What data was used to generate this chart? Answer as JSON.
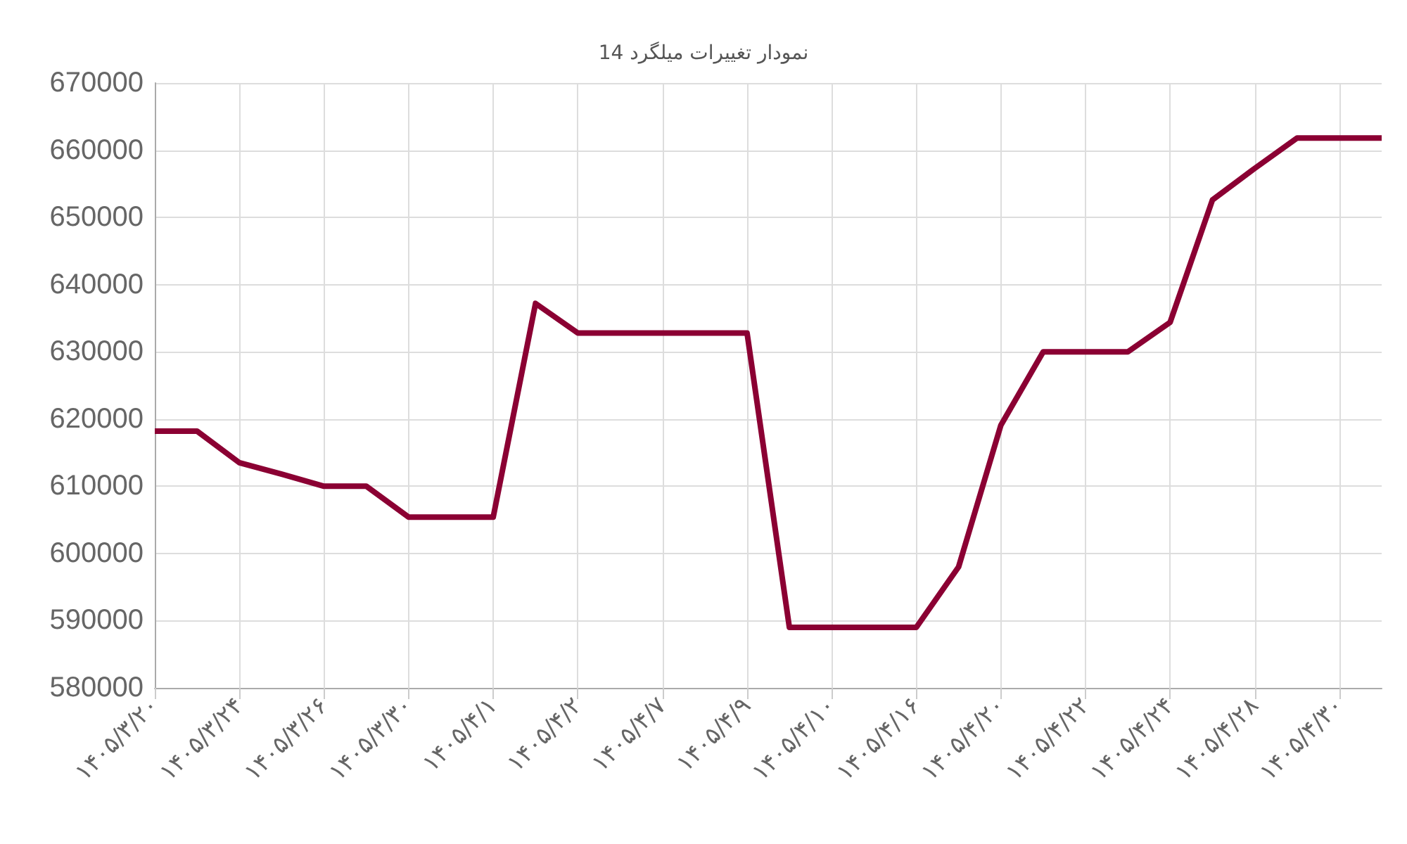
{
  "chart_data": {
    "type": "line",
    "title": "نمودار تغییرات میلگرد 14",
    "categories": [
      "۱۴۰۵/۳/۲۰",
      null,
      "۱۴۰۵/۳/۲۴",
      null,
      "۱۴۰۵/۳/۲۶",
      null,
      "۱۴۰۵/۳/۳۰",
      null,
      "۱۴۰۵/۴/۱",
      null,
      "۱۴۰۵/۴/۲",
      null,
      "۱۴۰۵/۴/۷",
      null,
      "۱۴۰۵/۴/۹",
      null,
      "۱۴۰۵/۴/۱۰",
      null,
      "۱۴۰۵/۴/۱۶",
      null,
      "۱۴۰۵/۴/۲۰",
      null,
      "۱۴۰۵/۴/۲۲",
      null,
      "۱۴۰۵/۴/۲۴",
      null,
      "۱۴۰۵/۴/۲۸",
      null,
      "۱۴۰۵/۴/۳۰",
      null
    ],
    "series": [
      {
        "color": "#8b0033",
        "values": [
          618200,
          618200,
          613500,
          611800,
          610000,
          610000,
          605400,
          605400,
          605400,
          637200,
          632800,
          632800,
          632800,
          632800,
          632800,
          589000,
          589000,
          589000,
          589000,
          598000,
          619100,
          630000,
          630000,
          630000,
          634400,
          652600,
          657300,
          661800,
          661800,
          661800
        ]
      }
    ],
    "ylim": [
      580000,
      670000
    ],
    "yticks": [
      580000,
      590000,
      600000,
      610000,
      620000,
      630000,
      640000,
      650000,
      660000,
      670000
    ],
    "grid": true,
    "marker": "none",
    "line_style": "solid"
  }
}
